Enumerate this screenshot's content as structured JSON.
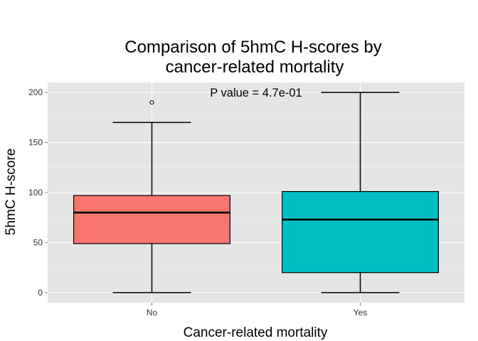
{
  "chart_data": {
    "type": "box",
    "title_lines": [
      "Comparison of 5hmC H-scores by",
      "cancer-related mortality"
    ],
    "xlabel": "Cancer-related mortality",
    "ylabel": "5hmC H-score",
    "categories": [
      "No",
      "Yes"
    ],
    "ylim": [
      -10,
      210
    ],
    "yticks": [
      0,
      50,
      100,
      150,
      200
    ],
    "grid": true,
    "legend": "none",
    "annotation": "P value = 4.7e-01",
    "boxes": [
      {
        "category": "No",
        "whisker_low": 0,
        "q1": 49,
        "median": 80,
        "q3": 97,
        "whisker_high": 170,
        "outliers": [
          190
        ],
        "color": "#F8766D"
      },
      {
        "category": "Yes",
        "whisker_low": 0,
        "q1": 20,
        "median": 73,
        "q3": 101,
        "whisker_high": 200,
        "outliers": [],
        "color": "#00BFC4"
      }
    ],
    "panel_color": "#E5E5E5",
    "grid_color": "#FFFFFF"
  }
}
